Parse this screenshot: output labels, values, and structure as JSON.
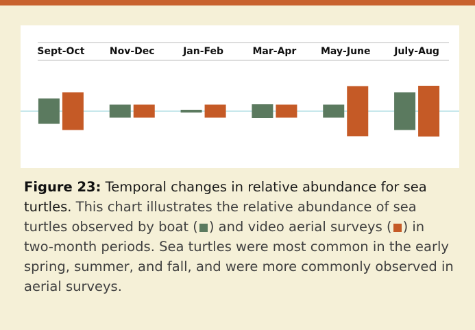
{
  "chart_data": {
    "type": "bar",
    "categories": [
      "Sept-Oct",
      "Nov-Dec",
      "Jan-Feb",
      "Mar-Apr",
      "May-June",
      "July-Aug"
    ],
    "series": [
      {
        "color": "#5b7a5f",
        "values": [
          37,
          19,
          4,
          20,
          19,
          55
        ]
      },
      {
        "color": "#c55a26",
        "values": [
          55,
          19,
          19,
          19,
          73,
          74
        ]
      }
    ]
  },
  "caption": {
    "label": "Figure 23:",
    "title": "Temporal changes in relative abundance for sea turtles.",
    "text_1": "This chart illustrates the relative abundance of sea turtles observed by boat (",
    "text_2": ") and video aerial surveys (",
    "text_3": ") in two-month periods. Sea turtles were most common in the early spring, summer, and fall, and were more commonly observed in aerial surveys."
  }
}
